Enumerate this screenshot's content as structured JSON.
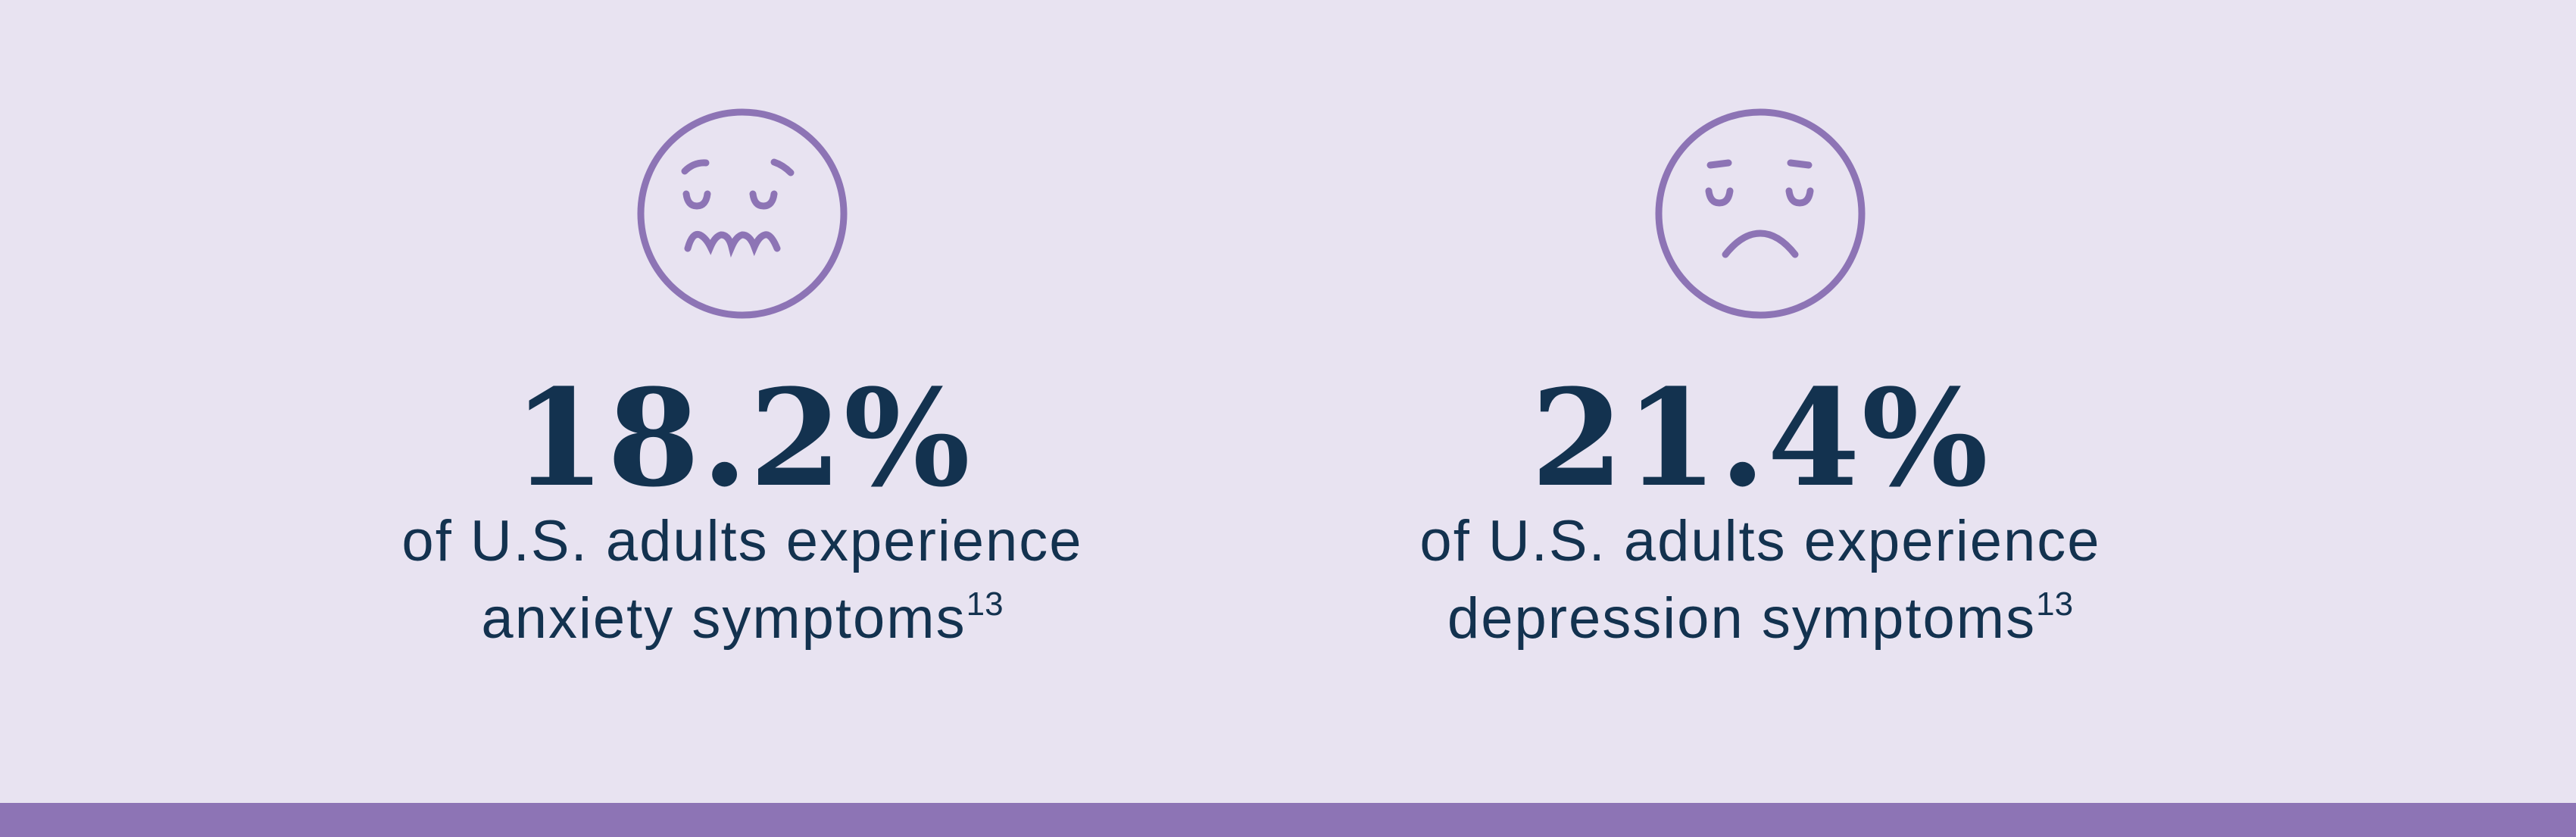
{
  "colors": {
    "background": "#e8e3f1",
    "accent": "#8d74b5",
    "text": "#13324f"
  },
  "stats": [
    {
      "icon": "anxious-face-icon",
      "value": "18.2%",
      "caption_line1": "of U.S. adults experience",
      "caption_line2": "anxiety symptoms",
      "footnote": "13"
    },
    {
      "icon": "sad-face-icon",
      "value": "21.4%",
      "caption_line1": "of U.S. adults experience",
      "caption_line2": "depression symptoms",
      "footnote": "13"
    }
  ]
}
